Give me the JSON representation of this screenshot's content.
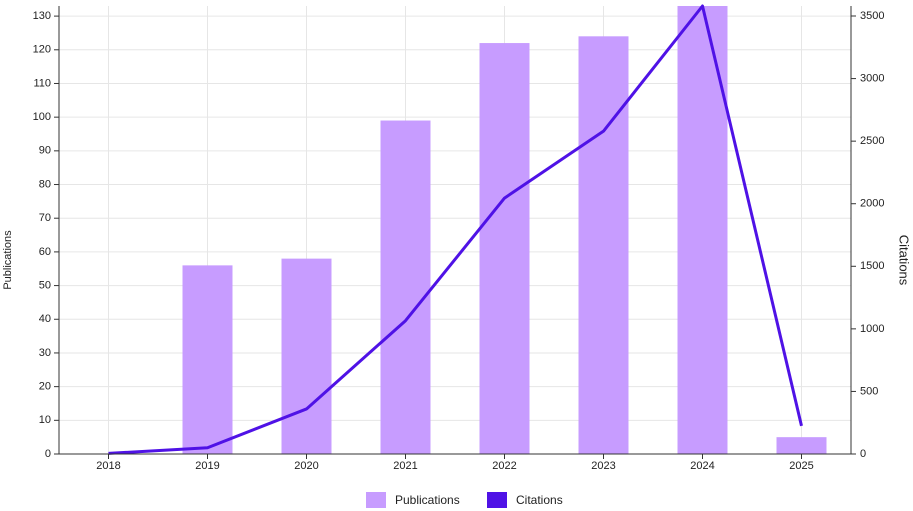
{
  "chart_data": {
    "type": "bar-line",
    "categories": [
      "2018",
      "2019",
      "2020",
      "2021",
      "2022",
      "2023",
      "2024",
      "2025"
    ],
    "series": [
      {
        "name": "Publications",
        "color": "#c79cff",
        "type": "bar",
        "values": [
          0,
          56,
          58,
          99,
          122,
          124,
          133,
          5
        ]
      },
      {
        "name": "Citations",
        "color": "#4f12e6",
        "type": "line",
        "axis": "y2",
        "values": [
          5,
          50,
          360,
          1065,
          2045,
          2580,
          3580,
          225
        ]
      }
    ],
    "y_label": "Publications",
    "y2_label": "Citations",
    "ylim": [
      0,
      133
    ],
    "yticks": [
      0,
      10,
      20,
      30,
      40,
      50,
      60,
      70,
      80,
      90,
      100,
      110,
      120,
      130
    ],
    "y2lim": [
      0,
      3580
    ],
    "y2ticks": [
      0,
      500,
      1000,
      1500,
      2000,
      2500,
      3000,
      3500
    ],
    "grid": true,
    "legend": "bottom"
  }
}
